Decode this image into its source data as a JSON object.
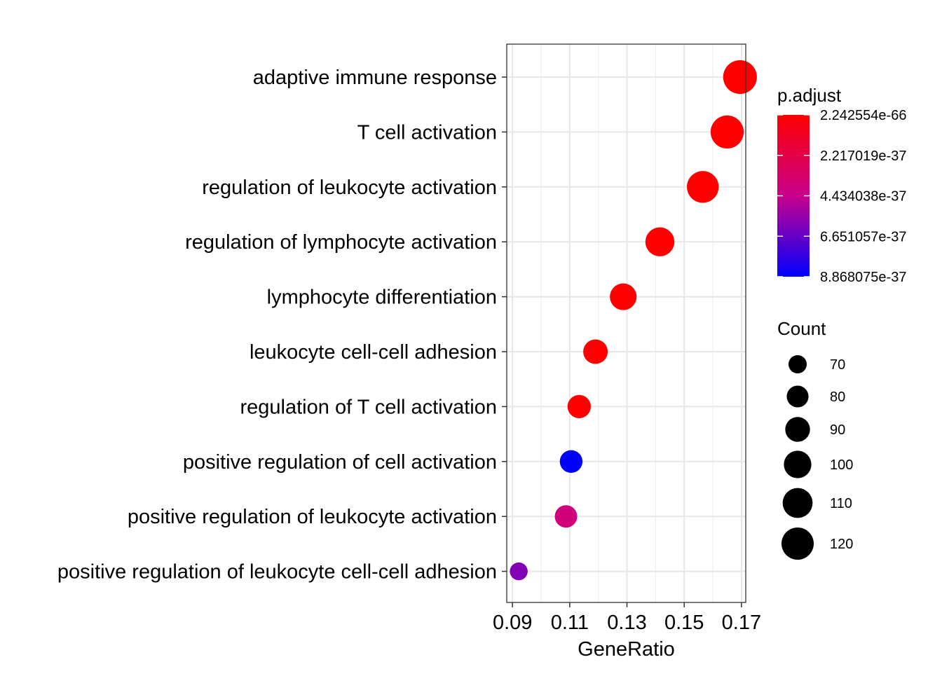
{
  "chart_data": {
    "type": "scatter",
    "title": "",
    "xlabel": "GeneRatio",
    "ylabel": "",
    "xlim": [
      0.088,
      0.1715
    ],
    "x_ticks": [
      0.09,
      0.11,
      0.13,
      0.15,
      0.17
    ],
    "x_tick_labels": [
      "0.09",
      "0.11",
      "0.13",
      "0.15",
      "0.17"
    ],
    "grid": true,
    "categories": [
      "adaptive immune response",
      "T cell activation",
      "regulation of leukocyte activation",
      "regulation of lymphocyte activation",
      "lymphocyte differentiation",
      "leukocyte cell-cell adhesion",
      "regulation of T cell activation",
      "positive regulation of cell activation",
      "positive regulation of leukocyte activation",
      "positive regulation of leukocyte cell-cell adhesion"
    ],
    "points": [
      {
        "term": "adaptive immune response",
        "gene_ratio": 0.1695,
        "count": 127,
        "p_adjust": 2.242554e-66
      },
      {
        "term": "T cell activation",
        "gene_ratio": 0.165,
        "count": 124,
        "p_adjust": 2.5e-60
      },
      {
        "term": "regulation of leukocyte activation",
        "gene_ratio": 0.1565,
        "count": 118,
        "p_adjust": 1.5e-55
      },
      {
        "term": "regulation of lymphocyte activation",
        "gene_ratio": 0.1415,
        "count": 106,
        "p_adjust": 3e-50
      },
      {
        "term": "lymphocyte differentiation",
        "gene_ratio": 0.1287,
        "count": 97,
        "p_adjust": 1e-45
      },
      {
        "term": "leukocyte cell-cell adhesion",
        "gene_ratio": 0.119,
        "count": 89,
        "p_adjust": 1e-42
      },
      {
        "term": "regulation of T cell activation",
        "gene_ratio": 0.1133,
        "count": 85,
        "p_adjust": 4e-42
      },
      {
        "term": "positive regulation of cell activation",
        "gene_ratio": 0.1105,
        "count": 83,
        "p_adjust": 8.868075e-37
      },
      {
        "term": "positive regulation of leukocyte activation",
        "gene_ratio": 0.1087,
        "count": 82,
        "p_adjust": 3.9e-37
      },
      {
        "term": "positive regulation of leukocyte cell-cell adhesion",
        "gene_ratio": 0.0922,
        "count": 69,
        "p_adjust": 6e-37
      }
    ],
    "color_legend": {
      "title": "p.adjust",
      "low_value": 2.242554e-66,
      "high_value": 8.868075e-37,
      "labels": [
        "2.242554e-66",
        "2.217019e-37",
        "4.434038e-37",
        "6.651057e-37",
        "8.868075e-37"
      ],
      "label_values": [
        2.242554e-66,
        2.217019e-37,
        4.434038e-37,
        6.651057e-37,
        8.868075e-37
      ],
      "low_color": "#ff0000",
      "high_color": "#0000ff"
    },
    "size_legend": {
      "title": "Count",
      "values": [
        70,
        80,
        90,
        100,
        110,
        120
      ],
      "labels": [
        "70",
        "80",
        "90",
        "100",
        "110",
        "120"
      ]
    },
    "legend_position": "right"
  }
}
